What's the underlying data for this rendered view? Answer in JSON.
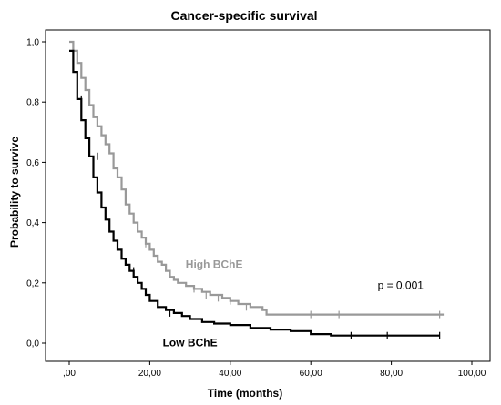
{
  "chart_data": {
    "type": "line",
    "title": "Cancer-specific survival",
    "xlabel": "Time (months)",
    "ylabel": "Probability to survive",
    "xlim": [
      0,
      100
    ],
    "ylim": [
      0,
      1
    ],
    "x_ticks": [
      0,
      20,
      40,
      60,
      80,
      100
    ],
    "x_tick_labels": [
      ",00",
      "20,00",
      "40,00",
      "60,00",
      "80,00",
      "100,00"
    ],
    "y_ticks": [
      0,
      0.2,
      0.4,
      0.6,
      0.8,
      1.0
    ],
    "y_tick_labels": [
      "0,0",
      "0,2",
      "0,4",
      "0,6",
      "0,8",
      "1,0"
    ],
    "grid": false,
    "colors": {
      "high": "#999999",
      "low": "#000000"
    },
    "series": [
      {
        "name": "High BChE",
        "step": true,
        "points": [
          [
            0,
            1.0
          ],
          [
            1,
            0.97
          ],
          [
            2,
            0.93
          ],
          [
            3,
            0.88
          ],
          [
            4,
            0.84
          ],
          [
            5,
            0.79
          ],
          [
            6,
            0.75
          ],
          [
            7,
            0.72
          ],
          [
            8,
            0.69
          ],
          [
            9,
            0.66
          ],
          [
            10,
            0.63
          ],
          [
            11,
            0.58
          ],
          [
            12,
            0.55
          ],
          [
            13,
            0.51
          ],
          [
            14,
            0.46
          ],
          [
            15,
            0.43
          ],
          [
            16,
            0.4
          ],
          [
            17,
            0.37
          ],
          [
            18,
            0.35
          ],
          [
            19,
            0.33
          ],
          [
            20,
            0.31
          ],
          [
            21,
            0.29
          ],
          [
            22,
            0.27
          ],
          [
            23,
            0.26
          ],
          [
            24,
            0.24
          ],
          [
            25,
            0.22
          ],
          [
            26,
            0.21
          ],
          [
            27,
            0.2
          ],
          [
            29,
            0.19
          ],
          [
            31,
            0.18
          ],
          [
            33,
            0.17
          ],
          [
            35,
            0.16
          ],
          [
            38,
            0.15
          ],
          [
            40,
            0.14
          ],
          [
            42,
            0.13
          ],
          [
            45,
            0.12
          ],
          [
            48,
            0.11
          ],
          [
            49,
            0.095
          ],
          [
            93,
            0.095
          ]
        ],
        "censored": [
          [
            1,
            0.99
          ],
          [
            19,
            0.33
          ],
          [
            31,
            0.18
          ],
          [
            34,
            0.16
          ],
          [
            37,
            0.15
          ],
          [
            40,
            0.14
          ],
          [
            44,
            0.12
          ],
          [
            60,
            0.095
          ],
          [
            67,
            0.095
          ],
          [
            92,
            0.095
          ]
        ]
      },
      {
        "name": "Low BChE",
        "step": true,
        "points": [
          [
            0,
            0.97
          ],
          [
            1,
            0.9
          ],
          [
            2,
            0.81
          ],
          [
            3,
            0.74
          ],
          [
            4,
            0.68
          ],
          [
            5,
            0.62
          ],
          [
            6,
            0.55
          ],
          [
            7,
            0.5
          ],
          [
            8,
            0.45
          ],
          [
            9,
            0.41
          ],
          [
            10,
            0.37
          ],
          [
            11,
            0.34
          ],
          [
            12,
            0.31
          ],
          [
            13,
            0.28
          ],
          [
            14,
            0.26
          ],
          [
            15,
            0.24
          ],
          [
            16,
            0.22
          ],
          [
            17,
            0.2
          ],
          [
            18,
            0.18
          ],
          [
            19,
            0.16
          ],
          [
            20,
            0.14
          ],
          [
            22,
            0.12
          ],
          [
            24,
            0.11
          ],
          [
            26,
            0.1
          ],
          [
            28,
            0.09
          ],
          [
            30,
            0.08
          ],
          [
            33,
            0.07
          ],
          [
            36,
            0.065
          ],
          [
            40,
            0.06
          ],
          [
            45,
            0.05
          ],
          [
            50,
            0.045
          ],
          [
            55,
            0.04
          ],
          [
            60,
            0.03
          ],
          [
            65,
            0.025
          ],
          [
            92,
            0.025
          ]
        ],
        "censored": [
          [
            3,
            0.81
          ],
          [
            7,
            0.62
          ],
          [
            16,
            0.24
          ],
          [
            25,
            0.1
          ],
          [
            70,
            0.025
          ],
          [
            79,
            0.025
          ],
          [
            92,
            0.025
          ]
        ]
      }
    ],
    "annotations": [
      {
        "text": "High BChE",
        "x": 36,
        "y": 0.25,
        "color": "#999999",
        "bold": true
      },
      {
        "text": "Low BChE",
        "x": 30,
        "y": -0.01,
        "color": "#000000",
        "bold": true
      },
      {
        "text": "p = 0.001",
        "x": 88,
        "y": 0.18,
        "color": "#000000",
        "bold": false
      }
    ]
  }
}
